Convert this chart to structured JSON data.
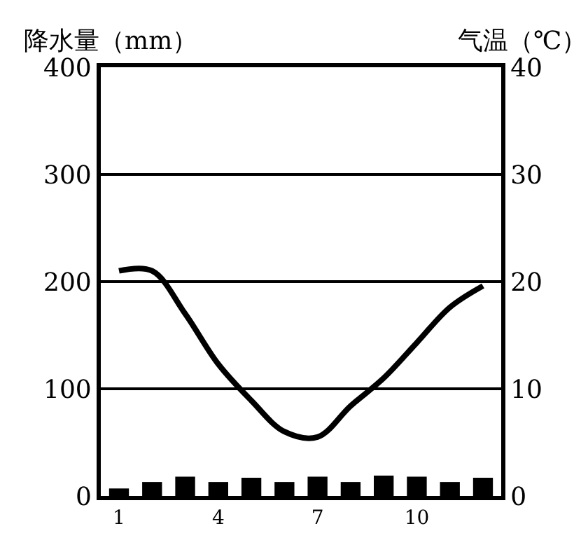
{
  "chart_data": {
    "type": "bar",
    "ylabel": "降水量（mm）",
    "y2label": "气温（℃）",
    "categories": [
      "1",
      null,
      null,
      "4",
      null,
      null,
      "7",
      null,
      null,
      "10",
      null,
      null
    ],
    "series": [
      {
        "color": "#000000",
        "values": [
          7,
          13,
          18,
          13,
          17,
          13,
          18,
          13,
          19,
          18,
          13,
          17
        ]
      },
      {
        "type": "line",
        "axis": "y2",
        "color": "#000000",
        "values": [
          21,
          21,
          17,
          12.3,
          8.9,
          6,
          5.5,
          8.4,
          11,
          14.3,
          17.6,
          19.6
        ]
      }
    ],
    "ylim": [
      0,
      400
    ],
    "yticks": [
      0,
      100,
      200,
      300,
      400
    ],
    "y2lim": [
      0,
      40
    ],
    "y2ticks": [
      0,
      10,
      20,
      30,
      40
    ],
    "grid": "y",
    "legend": false
  }
}
